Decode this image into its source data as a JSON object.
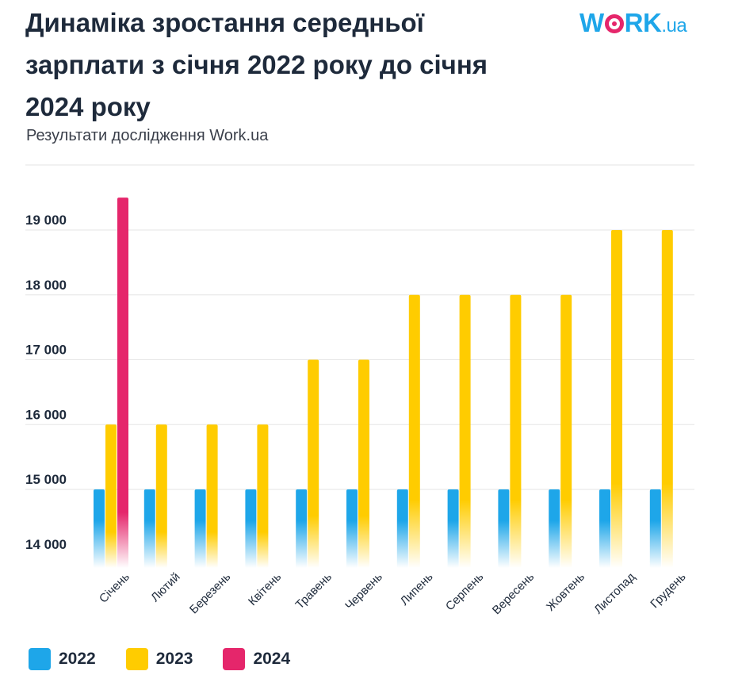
{
  "logo": {
    "text_a": "W",
    "text_b": "RK",
    "tld": ".ua"
  },
  "chart_data": {
    "type": "bar",
    "title": "Динаміка зростання середньої зарплати з січня 2022 року до січня 2024 року",
    "subtitle": "Результати дослідження Work.ua",
    "categories": [
      "Січень",
      "Лютий",
      "Березень",
      "Квітень",
      "Травень",
      "Червень",
      "Липень",
      "Серпень",
      "Вересень",
      "Жовтень",
      "Листопад",
      "Грудень"
    ],
    "series": [
      {
        "name": "2022",
        "color": "#1ea6e9",
        "values": [
          15000,
          15000,
          15000,
          15000,
          15000,
          15000,
          15000,
          15000,
          15000,
          15000,
          15000,
          15000
        ]
      },
      {
        "name": "2023",
        "color": "#ffcc00",
        "values": [
          16000,
          16000,
          16000,
          16000,
          17000,
          17000,
          18000,
          18000,
          18000,
          18000,
          19000,
          19000
        ]
      },
      {
        "name": "2024",
        "color": "#e5266b",
        "values": [
          19500,
          null,
          null,
          null,
          null,
          null,
          null,
          null,
          null,
          null,
          null,
          null
        ]
      }
    ],
    "yticks": [
      "14 000",
      "15 000",
      "16 000",
      "17 000",
      "18 000",
      "19 000"
    ],
    "ytick_values": [
      14000,
      15000,
      16000,
      17000,
      18000,
      19000
    ],
    "ylim": [
      13800,
      20000
    ],
    "grid": true,
    "legend": "bottom-left"
  }
}
